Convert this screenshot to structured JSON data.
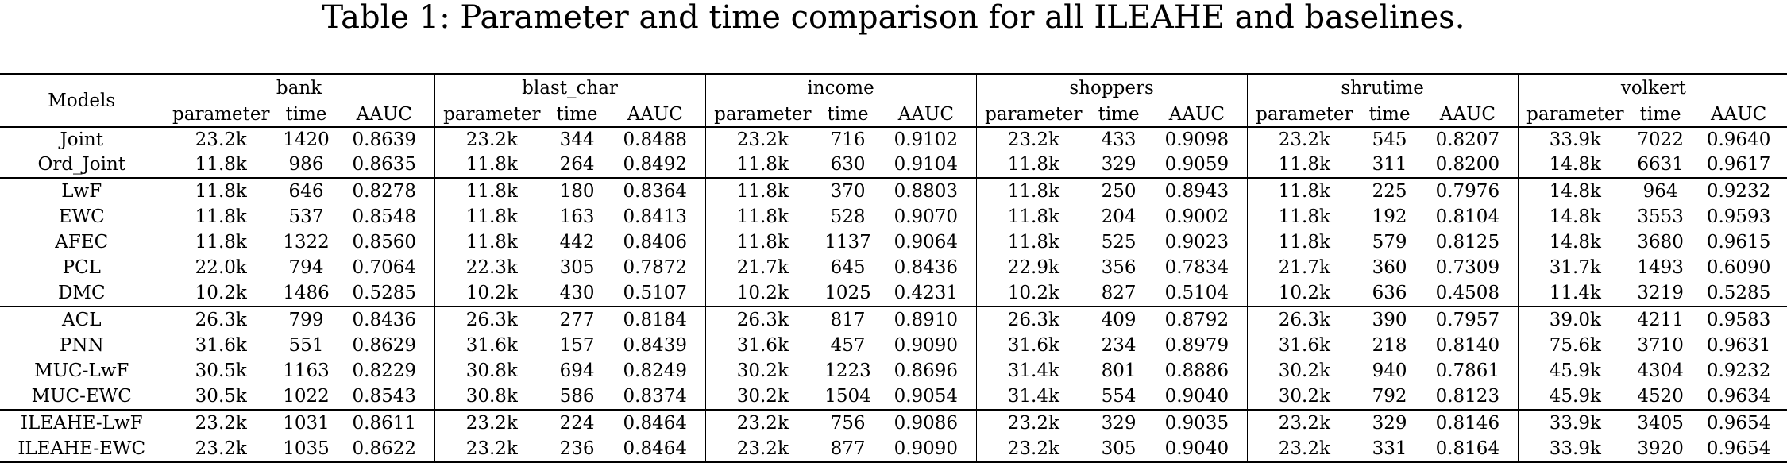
{
  "caption": "Table 1: Parameter and time comparison for all ILEAHE and baselines.",
  "header": {
    "models_label": "Models",
    "datasets": [
      "bank",
      "blast_char",
      "income",
      "shoppers",
      "shrutime",
      "volkert"
    ],
    "subcolumns": [
      "parameter",
      "time",
      "AAUC"
    ]
  },
  "groups": [
    {
      "rows": [
        {
          "model": "Joint",
          "cells": [
            [
              "23.2k",
              "1420",
              "0.8639"
            ],
            [
              "23.2k",
              "344",
              "0.8488"
            ],
            [
              "23.2k",
              "716",
              "0.9102"
            ],
            [
              "23.2k",
              "433",
              "0.9098"
            ],
            [
              "23.2k",
              "545",
              "0.8207"
            ],
            [
              "33.9k",
              "7022",
              "0.9640"
            ]
          ]
        },
        {
          "model": "Ord_Joint",
          "cells": [
            [
              "11.8k",
              "986",
              "0.8635"
            ],
            [
              "11.8k",
              "264",
              "0.8492"
            ],
            [
              "11.8k",
              "630",
              "0.9104"
            ],
            [
              "11.8k",
              "329",
              "0.9059"
            ],
            [
              "11.8k",
              "311",
              "0.8200"
            ],
            [
              "14.8k",
              "6631",
              "0.9617"
            ]
          ]
        }
      ]
    },
    {
      "rows": [
        {
          "model": "LwF",
          "cells": [
            [
              "11.8k",
              "646",
              "0.8278"
            ],
            [
              "11.8k",
              "180",
              "0.8364"
            ],
            [
              "11.8k",
              "370",
              "0.8803"
            ],
            [
              "11.8k",
              "250",
              "0.8943"
            ],
            [
              "11.8k",
              "225",
              "0.7976"
            ],
            [
              "14.8k",
              "964",
              "0.9232"
            ]
          ]
        },
        {
          "model": "EWC",
          "cells": [
            [
              "11.8k",
              "537",
              "0.8548"
            ],
            [
              "11.8k",
              "163",
              "0.8413"
            ],
            [
              "11.8k",
              "528",
              "0.9070"
            ],
            [
              "11.8k",
              "204",
              "0.9002"
            ],
            [
              "11.8k",
              "192",
              "0.8104"
            ],
            [
              "14.8k",
              "3553",
              "0.9593"
            ]
          ]
        },
        {
          "model": "AFEC",
          "cells": [
            [
              "11.8k",
              "1322",
              "0.8560"
            ],
            [
              "11.8k",
              "442",
              "0.8406"
            ],
            [
              "11.8k",
              "1137",
              "0.9064"
            ],
            [
              "11.8k",
              "525",
              "0.9023"
            ],
            [
              "11.8k",
              "579",
              "0.8125"
            ],
            [
              "14.8k",
              "3680",
              "0.9615"
            ]
          ]
        },
        {
          "model": "PCL",
          "cells": [
            [
              "22.0k",
              "794",
              "0.7064"
            ],
            [
              "22.3k",
              "305",
              "0.7872"
            ],
            [
              "21.7k",
              "645",
              "0.8436"
            ],
            [
              "22.9k",
              "356",
              "0.7834"
            ],
            [
              "21.7k",
              "360",
              "0.7309"
            ],
            [
              "31.7k",
              "1493",
              "0.6090"
            ]
          ]
        },
        {
          "model": "DMC",
          "cells": [
            [
              "10.2k",
              "1486",
              "0.5285"
            ],
            [
              "10.2k",
              "430",
              "0.5107"
            ],
            [
              "10.2k",
              "1025",
              "0.4231"
            ],
            [
              "10.2k",
              "827",
              "0.5104"
            ],
            [
              "10.2k",
              "636",
              "0.4508"
            ],
            [
              "11.4k",
              "3219",
              "0.5285"
            ]
          ]
        }
      ]
    },
    {
      "rows": [
        {
          "model": "ACL",
          "cells": [
            [
              "26.3k",
              "799",
              "0.8436"
            ],
            [
              "26.3k",
              "277",
              "0.8184"
            ],
            [
              "26.3k",
              "817",
              "0.8910"
            ],
            [
              "26.3k",
              "409",
              "0.8792"
            ],
            [
              "26.3k",
              "390",
              "0.7957"
            ],
            [
              "39.0k",
              "4211",
              "0.9583"
            ]
          ]
        },
        {
          "model": "PNN",
          "cells": [
            [
              "31.6k",
              "551",
              "0.8629"
            ],
            [
              "31.6k",
              "157",
              "0.8439"
            ],
            [
              "31.6k",
              "457",
              "0.9090"
            ],
            [
              "31.6k",
              "234",
              "0.8979"
            ],
            [
              "31.6k",
              "218",
              "0.8140"
            ],
            [
              "75.6k",
              "3710",
              "0.9631"
            ]
          ]
        },
        {
          "model": "MUC-LwF",
          "cells": [
            [
              "30.5k",
              "1163",
              "0.8229"
            ],
            [
              "30.8k",
              "694",
              "0.8249"
            ],
            [
              "30.2k",
              "1223",
              "0.8696"
            ],
            [
              "31.4k",
              "801",
              "0.8886"
            ],
            [
              "30.2k",
              "940",
              "0.7861"
            ],
            [
              "45.9k",
              "4304",
              "0.9232"
            ]
          ]
        },
        {
          "model": "MUC-EWC",
          "cells": [
            [
              "30.5k",
              "1022",
              "0.8543"
            ],
            [
              "30.8k",
              "586",
              "0.8374"
            ],
            [
              "30.2k",
              "1504",
              "0.9054"
            ],
            [
              "31.4k",
              "554",
              "0.9040"
            ],
            [
              "30.2k",
              "792",
              "0.8123"
            ],
            [
              "45.9k",
              "4520",
              "0.9634"
            ]
          ]
        }
      ]
    },
    {
      "rows": [
        {
          "model": "ILEAHE-LwF",
          "cells": [
            [
              "23.2k",
              "1031",
              "0.8611"
            ],
            [
              "23.2k",
              "224",
              "0.8464"
            ],
            [
              "23.2k",
              "756",
              "0.9086"
            ],
            [
              "23.2k",
              "329",
              "0.9035"
            ],
            [
              "23.2k",
              "329",
              "0.8146"
            ],
            [
              "33.9k",
              "3405",
              "0.9654"
            ]
          ]
        },
        {
          "model": "ILEAHE-EWC",
          "cells": [
            [
              "23.2k",
              "1035",
              "0.8622"
            ],
            [
              "23.2k",
              "236",
              "0.8464"
            ],
            [
              "23.2k",
              "877",
              "0.9090"
            ],
            [
              "23.2k",
              "305",
              "0.9040"
            ],
            [
              "23.2k",
              "331",
              "0.8164"
            ],
            [
              "33.9k",
              "3920",
              "0.9654"
            ]
          ]
        }
      ]
    }
  ]
}
